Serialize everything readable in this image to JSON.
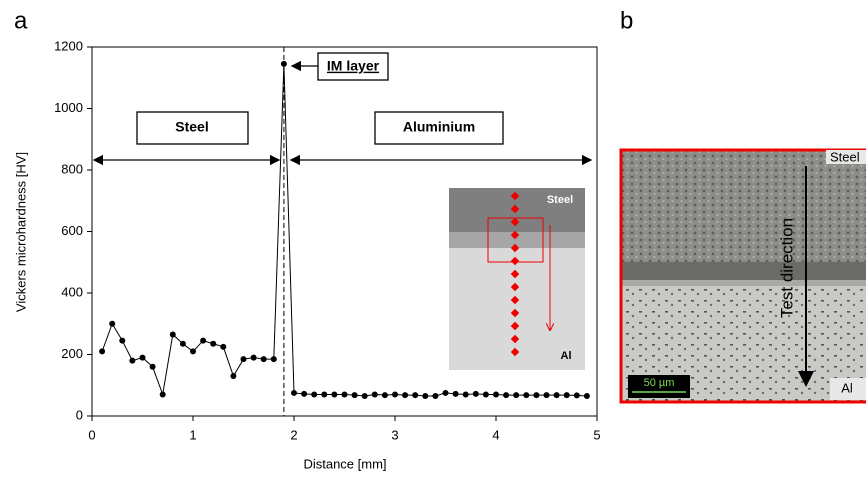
{
  "panel_labels": [
    "a",
    "b"
  ],
  "chart_data": {
    "type": "line",
    "x_label": "Distance [mm]",
    "y_label": "Vickers microhardness [HV]",
    "x": [
      0.1,
      0.2,
      0.3,
      0.4,
      0.5,
      0.6,
      0.7,
      0.8,
      0.9,
      1.0,
      1.1,
      1.2,
      1.3,
      1.4,
      1.5,
      1.6,
      1.7,
      1.8,
      1.9,
      2.0,
      2.1,
      2.2,
      2.3,
      2.4,
      2.5,
      2.6,
      2.7,
      2.8,
      2.9,
      3.0,
      3.1,
      3.2,
      3.3,
      3.4,
      3.5,
      3.6,
      3.7,
      3.8,
      3.9,
      4.0,
      4.1,
      4.2,
      4.3,
      4.4,
      4.5,
      4.6,
      4.7,
      4.8,
      4.9
    ],
    "values": [
      210,
      300,
      245,
      180,
      190,
      160,
      70,
      265,
      235,
      210,
      245,
      235,
      225,
      130,
      185,
      190,
      185,
      185,
      1145,
      75,
      72,
      70,
      70,
      70,
      70,
      68,
      65,
      70,
      68,
      70,
      68,
      68,
      65,
      65,
      75,
      72,
      70,
      72,
      70,
      70,
      68,
      68,
      68,
      68,
      68,
      68,
      68,
      67,
      65
    ],
    "color": "#000000",
    "xlim": [
      0,
      5
    ],
    "ylim": [
      0,
      1200
    ],
    "xticks": [
      0,
      1,
      2,
      3,
      4,
      5
    ],
    "yticks": [
      0,
      200,
      400,
      600,
      800,
      1000,
      1200
    ],
    "annotations": [
      "IM layer",
      "Steel",
      "Aluminium"
    ],
    "inset_labels": [
      "Steel",
      "Al"
    ]
  },
  "micrograph": {
    "labels": [
      "Steel",
      "Test direction",
      "50 µm",
      "Al"
    ]
  }
}
